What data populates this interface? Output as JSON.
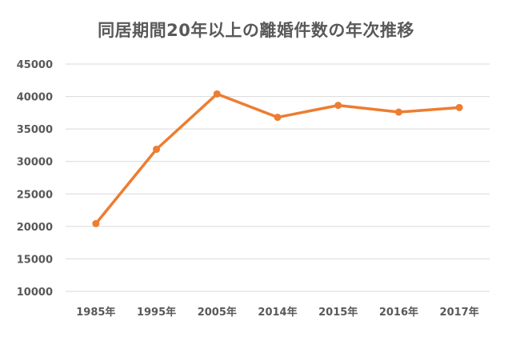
{
  "chart_data": {
    "type": "line",
    "title": "同居期間20年以上の離婚件数の年次推移",
    "categories": [
      "1985年",
      "1995年",
      "2005年",
      "2014年",
      "2015年",
      "2016年",
      "2017年"
    ],
    "series": [
      {
        "values": [
          20434,
          31877,
          40395,
          36800,
          38641,
          37600,
          38300
        ]
      }
    ],
    "ylim": [
      10000,
      45000
    ],
    "yticks": [
      10000,
      15000,
      20000,
      25000,
      30000,
      35000,
      40000,
      45000
    ],
    "grid": true,
    "legend": "none",
    "line_color": "#ed7d31",
    "grid_color": "#d9d9d9",
    "text_color": "#595959"
  }
}
